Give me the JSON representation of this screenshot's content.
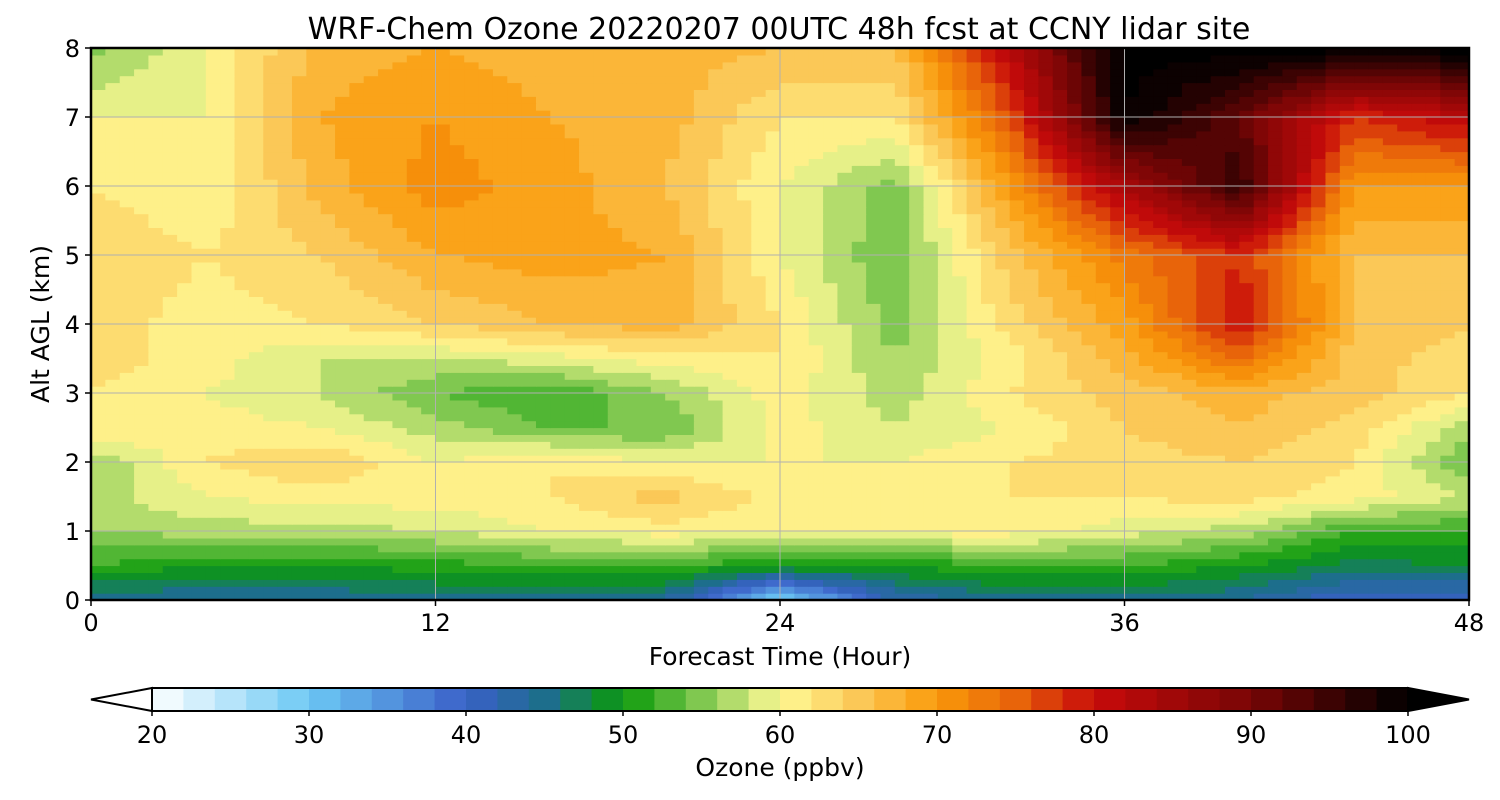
{
  "chart_data": {
    "type": "heatmap",
    "title": "WRF-Chem Ozone  20220207 00UTC 48h fcst at CCNY lidar site",
    "xlabel": "Forecast Time (Hour)",
    "ylabel": "Alt AGL (km)",
    "xlim": [
      0,
      48
    ],
    "ylim": [
      0,
      8
    ],
    "x_ticks": [
      0,
      12,
      24,
      36,
      48
    ],
    "y_ticks": [
      0,
      1,
      2,
      3,
      4,
      5,
      6,
      7,
      8
    ],
    "grid": true,
    "x": [
      0,
      4,
      8,
      12,
      16,
      20,
      24,
      28,
      32,
      36,
      40,
      44,
      48
    ],
    "y": [
      0,
      0.5,
      1,
      1.5,
      2,
      2.5,
      3,
      3.5,
      4,
      5,
      6,
      7,
      8
    ],
    "z": [
      [
        44,
        44,
        44,
        45,
        45,
        44,
        28,
        42,
        45,
        45,
        44,
        40,
        40
      ],
      [
        52,
        50,
        50,
        51,
        52,
        52,
        50,
        50,
        52,
        52,
        50,
        47,
        48
      ],
      [
        56,
        57,
        57,
        58,
        60,
        61,
        60,
        61,
        61,
        59,
        57,
        52,
        52
      ],
      [
        57,
        60,
        61,
        61,
        62,
        65,
        61,
        62,
        62,
        62,
        63,
        61,
        58
      ],
      [
        56,
        62,
        64,
        60,
        62,
        60,
        60,
        60,
        62,
        63,
        64,
        62,
        54
      ],
      [
        62,
        61,
        60,
        57,
        54,
        54,
        61,
        58,
        60,
        64,
        66,
        63,
        57
      ],
      [
        62,
        60,
        58,
        54,
        52,
        56,
        61,
        57,
        62,
        65,
        67,
        65,
        62
      ],
      [
        63,
        61,
        58,
        58,
        59,
        61,
        62,
        56,
        61,
        67,
        74,
        65,
        63
      ],
      [
        63,
        61,
        62,
        64,
        66,
        67,
        62,
        55,
        63,
        69,
        80,
        66,
        64
      ],
      [
        64,
        62,
        64,
        68,
        69,
        68,
        60,
        54,
        65,
        73,
        78,
        66,
        66
      ],
      [
        62,
        60,
        67,
        71,
        69,
        66,
        60,
        55,
        70,
        84,
        96,
        70,
        70
      ],
      [
        60,
        60,
        68,
        70,
        68,
        67,
        62,
        62,
        76,
        100,
        92,
        78,
        82
      ],
      [
        55,
        60,
        67,
        68,
        67,
        67,
        66,
        66,
        82,
        101,
        101,
        101,
        101
      ]
    ],
    "colorbar": {
      "label": "Ozone  (ppbv)",
      "min": 20,
      "max": 100,
      "ticks": [
        20,
        30,
        40,
        50,
        60,
        70,
        80,
        90,
        100
      ],
      "extend": "both",
      "color_stops": [
        {
          "value": 20,
          "color": "#ffffff"
        },
        {
          "value": 30,
          "color": "#6cc8f4"
        },
        {
          "value": 40,
          "color": "#3a60c8"
        },
        {
          "value": 45,
          "color": "#1d6e8c"
        },
        {
          "value": 50,
          "color": "#0a9a0a"
        },
        {
          "value": 55,
          "color": "#80c850"
        },
        {
          "value": 60,
          "color": "#fffa96"
        },
        {
          "value": 65,
          "color": "#fbc857"
        },
        {
          "value": 70,
          "color": "#fa9a0a"
        },
        {
          "value": 75,
          "color": "#e8640a"
        },
        {
          "value": 80,
          "color": "#c80a0a"
        },
        {
          "value": 90,
          "color": "#780505"
        },
        {
          "value": 100,
          "color": "#000000"
        }
      ]
    }
  }
}
